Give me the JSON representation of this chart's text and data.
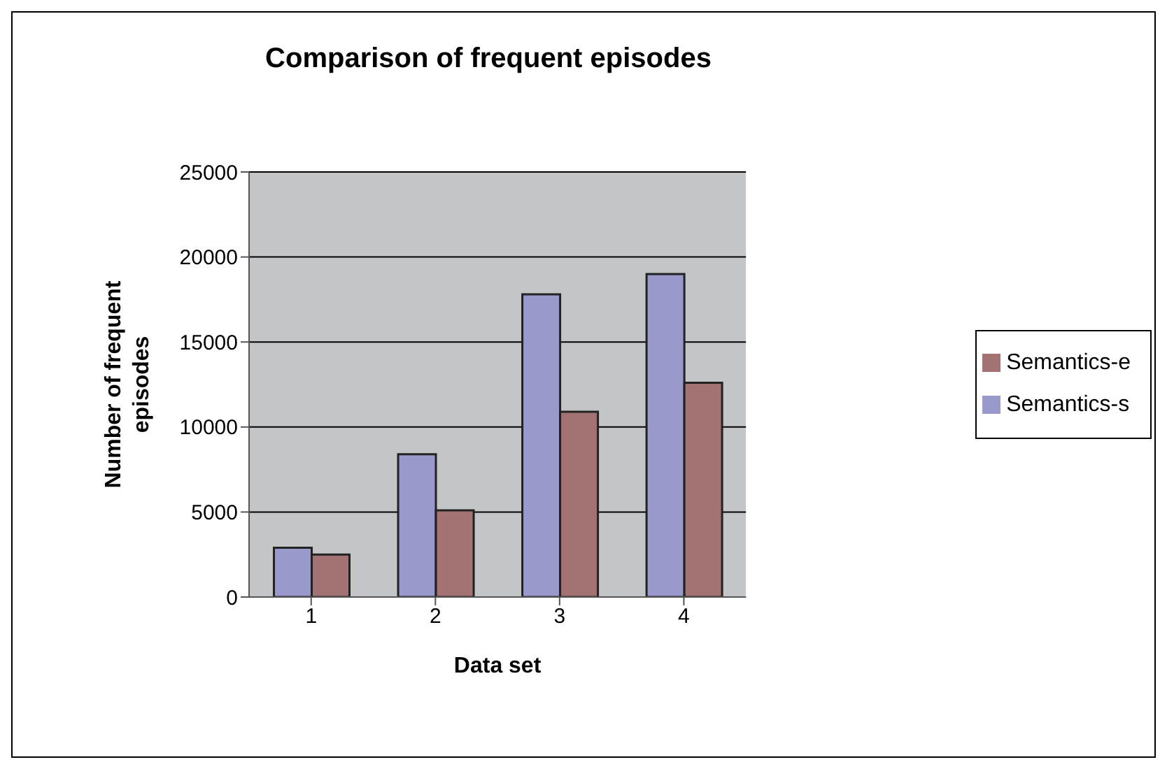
{
  "chart_data": {
    "type": "bar",
    "title": "Comparison of frequent episodes",
    "xlabel": "Data set",
    "ylabel": "Number of frequent episodes",
    "categories": [
      "1",
      "2",
      "3",
      "4"
    ],
    "series": [
      {
        "name": "Semantics-s",
        "color": "#9999cc",
        "values": [
          2900,
          8400,
          17800,
          19000
        ]
      },
      {
        "name": "Semantics-e",
        "color": "#a37373",
        "values": [
          2500,
          5100,
          10900,
          12600
        ]
      }
    ],
    "ylim": [
      0,
      25000
    ],
    "yticks": [
      0,
      5000,
      10000,
      15000,
      20000,
      25000
    ],
    "grid": "y",
    "legend": "right"
  }
}
